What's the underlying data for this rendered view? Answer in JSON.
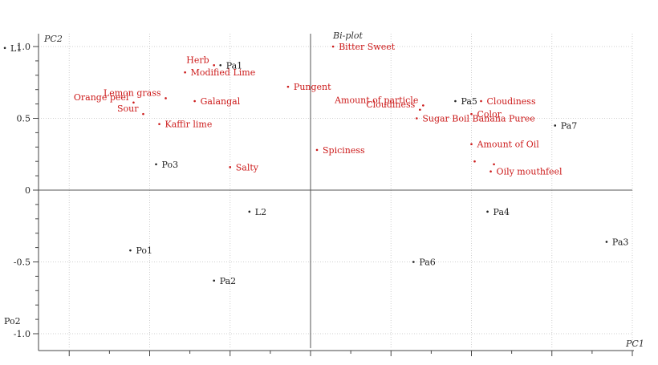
{
  "chart_data": {
    "type": "scatter",
    "title": "Bi-plot",
    "xlabel": "PC1",
    "ylabel": "PC2",
    "ylim": [
      -1.0,
      1.0
    ],
    "xlim": [
      -1.0,
      1.0
    ],
    "yticks": [
      {
        "value": 1.0,
        "label": "1.0"
      },
      {
        "value": 0.5,
        "label": "0.5"
      },
      {
        "value": 0.0,
        "label": "0"
      },
      {
        "value": -0.5,
        "label": "-0.5"
      },
      {
        "value": -1.0,
        "label": "-1.0"
      }
    ],
    "grid": true,
    "observations_color": "#222222",
    "variables_color": "#cc1a1a",
    "observations": [
      {
        "label": "L1",
        "x": -0.95,
        "y": 0.99
      },
      {
        "label": "Pa1",
        "x": -0.28,
        "y": 0.87
      },
      {
        "label": "Po3",
        "x": -0.48,
        "y": 0.18
      },
      {
        "label": "L2",
        "x": -0.19,
        "y": -0.15
      },
      {
        "label": "Po1",
        "x": -0.56,
        "y": -0.42
      },
      {
        "label": "Pa2",
        "x": -0.3,
        "y": -0.63
      },
      {
        "label": "Po2",
        "x": -0.97,
        "y": -0.91
      },
      {
        "label": "Pa5",
        "x": 0.45,
        "y": 0.62
      },
      {
        "label": "Pa7",
        "x": 0.76,
        "y": 0.45
      },
      {
        "label": "Pa4",
        "x": 0.55,
        "y": -0.15
      },
      {
        "label": "Pa6",
        "x": 0.32,
        "y": -0.5
      },
      {
        "label": "Pa3",
        "x": 0.92,
        "y": -0.36
      }
    ],
    "variables": [
      {
        "label": "Bitter Sweet",
        "x": 0.07,
        "y": 1.0
      },
      {
        "label": "Herb",
        "x": -0.3,
        "y": 0.87
      },
      {
        "label": "Modified Lime",
        "x": -0.39,
        "y": 0.82
      },
      {
        "label": "Pungent",
        "x": -0.07,
        "y": 0.72
      },
      {
        "label": "Lemon grass",
        "x": -0.45,
        "y": 0.64
      },
      {
        "label": "Orange peel",
        "x": -0.55,
        "y": 0.61
      },
      {
        "label": "Galangal",
        "x": -0.36,
        "y": 0.62
      },
      {
        "label": "Sour",
        "x": -0.52,
        "y": 0.53
      },
      {
        "label": "Kaffir lime",
        "x": -0.47,
        "y": 0.46
      },
      {
        "label": "Salty",
        "x": -0.25,
        "y": 0.16
      },
      {
        "label": "Spiciness",
        "x": 0.02,
        "y": 0.28
      },
      {
        "label": "Amount of particle",
        "x": 0.35,
        "y": 0.59
      },
      {
        "label": "Cloudiness",
        "x": 0.34,
        "y": 0.56
      },
      {
        "label": "Cloudiness",
        "x": 0.53,
        "y": 0.62
      },
      {
        "label": "Color",
        "x": 0.5,
        "y": 0.53
      },
      {
        "label": "Sugar Boil Banana Puree",
        "x": 0.33,
        "y": 0.5
      },
      {
        "label": "Amount of Oil",
        "x": 0.5,
        "y": 0.32
      },
      {
        "label": "",
        "x": 0.51,
        "y": 0.2
      },
      {
        "label": "",
        "x": 0.57,
        "y": 0.18
      },
      {
        "label": "Oily mouthfeel",
        "x": 0.56,
        "y": 0.13
      }
    ]
  }
}
